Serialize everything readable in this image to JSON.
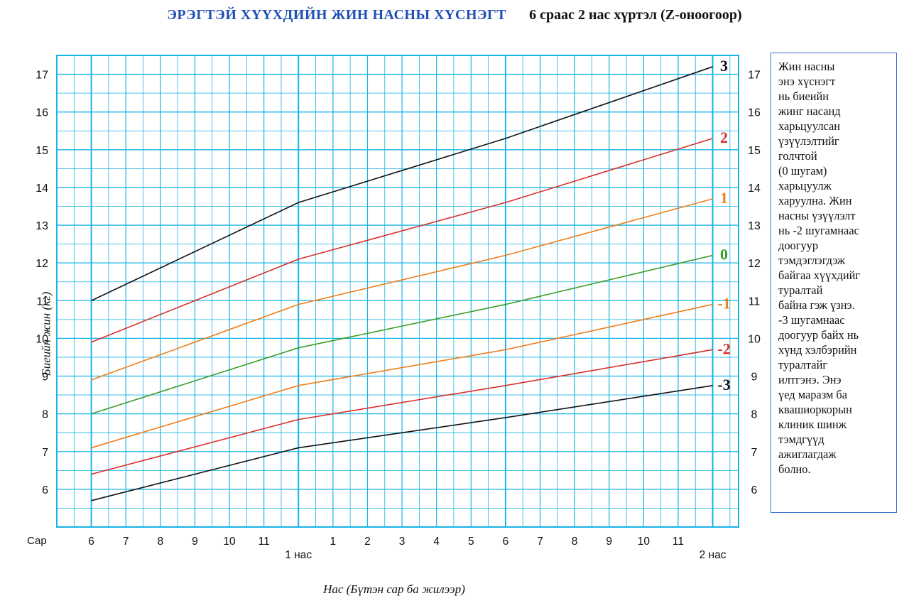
{
  "title": {
    "main": "ЭРЭГТЭЙ ХҮҮХДИЙН ЖИН НАСНЫ ХҮСНЭГТ",
    "sub": "6 сраас 2 нас хүртэл (Z-оноогоор)"
  },
  "note_lines": [
    "Жин насны",
    "энэ хүснэгт",
    "нь биеийн",
    "жинг насанд",
    "харьцуулсан",
    "үзүүлэлтийг",
    "голчтой",
    "(0 шугам)",
    "харьцуулж",
    "харуулна. Жин",
    "насны үзүүлэлт",
    "нь -2 шугамнаас",
    "доогуур",
    "тэмдэглэгдэж",
    "байгаа хүүхдийг",
    "туралтай",
    "байна гэж үзнэ.",
    "-3 шугамнаас",
    "доогуур байх нь",
    "хүнд хэлбэрийн",
    "туралтайг",
    "илтгэнэ. Энэ",
    "үед маразм ба",
    "квашиоркорын",
    "клиник шинж",
    "тэмдгүүд",
    "ажиглагдаж",
    "болно."
  ],
  "chart_data": {
    "type": "line",
    "title": "ЭРЭГТЭЙ ХҮҮХДИЙН ЖИН НАСНЫ ХҮСНЭГТ",
    "subtitle": "6 сраас 2 нас хүртэл (Z-оноогоор)",
    "xlabel": "Нас (Бүтэн сар ба жилээр)",
    "ylabel": "Биеийн жин (кг)",
    "x_axis_title": "Сар",
    "x_unit": "months",
    "xlim": [
      5,
      24.75
    ],
    "ylim": [
      5,
      17.5
    ],
    "yticks": [
      6,
      7,
      8,
      9,
      10,
      11,
      12,
      13,
      14,
      15,
      16,
      17
    ],
    "x_ticks": [
      {
        "x": 6,
        "label": "6"
      },
      {
        "x": 7,
        "label": "7"
      },
      {
        "x": 8,
        "label": "8"
      },
      {
        "x": 9,
        "label": "9"
      },
      {
        "x": 10,
        "label": "10"
      },
      {
        "x": 11,
        "label": "11"
      },
      {
        "x": 13,
        "label": "1"
      },
      {
        "x": 14,
        "label": "2"
      },
      {
        "x": 15,
        "label": "3"
      },
      {
        "x": 16,
        "label": "4"
      },
      {
        "x": 17,
        "label": "5"
      },
      {
        "x": 18,
        "label": "6"
      },
      {
        "x": 19,
        "label": "7"
      },
      {
        "x": 20,
        "label": "8"
      },
      {
        "x": 21,
        "label": "9"
      },
      {
        "x": 22,
        "label": "10"
      },
      {
        "x": 23,
        "label": "11"
      }
    ],
    "year_labels": [
      {
        "x": 12,
        "label": "1 нас"
      },
      {
        "x": 24,
        "label": "2 нас"
      }
    ],
    "grid": true,
    "x": [
      6,
      12,
      18,
      24
    ],
    "series": [
      {
        "name": "3",
        "color": "#111111",
        "values": [
          11.0,
          13.6,
          15.3,
          17.2
        ]
      },
      {
        "name": "2",
        "color": "#d9302a",
        "values": [
          9.9,
          12.1,
          13.6,
          15.3
        ]
      },
      {
        "name": "1",
        "color": "#f07e1b",
        "values": [
          8.9,
          10.9,
          12.2,
          13.7
        ]
      },
      {
        "name": "0",
        "color": "#3a9e2a",
        "values": [
          8.0,
          9.75,
          10.9,
          12.2
        ]
      },
      {
        "name": "-1",
        "color": "#f07e1b",
        "values": [
          7.1,
          8.75,
          9.7,
          10.9
        ]
      },
      {
        "name": "-2",
        "color": "#d9302a",
        "values": [
          6.4,
          7.85,
          8.75,
          9.7
        ]
      },
      {
        "name": "-3",
        "color": "#111111",
        "values": [
          5.7,
          7.1,
          7.9,
          8.75
        ]
      }
    ]
  }
}
